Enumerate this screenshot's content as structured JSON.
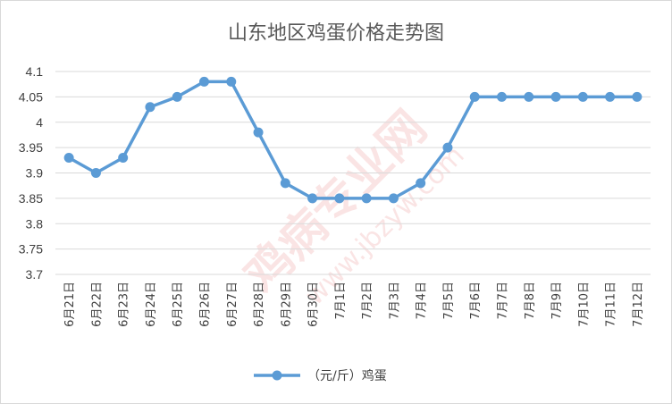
{
  "chart_data": {
    "type": "line",
    "title": "山东地区鸡蛋价格走势图",
    "categories": [
      "6月21日",
      "6月22日",
      "6月23日",
      "6月24日",
      "6月25日",
      "6月26日",
      "6月27日",
      "6月28日",
      "6月29日",
      "6月30日",
      "7月1日",
      "7月2日",
      "7月3日",
      "7月4日",
      "7月5日",
      "7月6日",
      "7月7日",
      "7月8日",
      "7月9日",
      "7月10日",
      "7月11日",
      "7月12日"
    ],
    "series": [
      {
        "name": "（元/斤）鸡蛋",
        "values": [
          3.93,
          3.9,
          3.93,
          4.03,
          4.05,
          4.08,
          4.08,
          3.98,
          3.88,
          3.85,
          3.85,
          3.85,
          3.85,
          3.88,
          3.95,
          4.05,
          4.05,
          4.05,
          4.05,
          4.05,
          4.05,
          4.05
        ]
      }
    ],
    "ylim": [
      3.7,
      4.1
    ],
    "yticks": [
      "3.7",
      "3.75",
      "3.8",
      "3.85",
      "3.9",
      "3.95",
      "4",
      "4.05",
      "4.1"
    ],
    "grid": true,
    "legend_position": "bottom",
    "colors": {
      "series": "#5b9bd5",
      "grid": "#d9d9d9"
    },
    "watermark": "鸡病专业网 www.jbzyw.com"
  }
}
